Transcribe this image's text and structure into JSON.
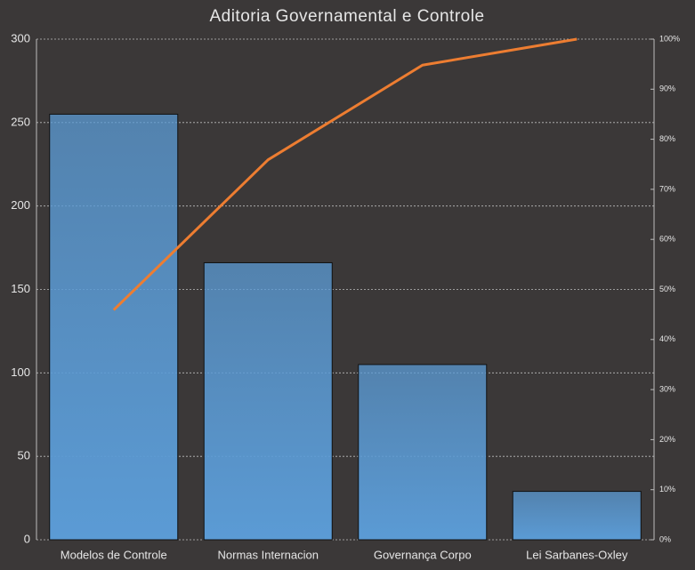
{
  "chart_data": {
    "type": "pareto",
    "title": "Aditoria Governamental e Controle",
    "categories": [
      "Modelos de Controle",
      "Normas Internacion",
      "Governança Corpo",
      "Lei Sarbanes-Oxley"
    ],
    "values": [
      255,
      166,
      105,
      29
    ],
    "color": "#5b9bd5",
    "line": {
      "values": [
        45.9,
        75.9,
        94.8,
        100
      ],
      "color": "#ed7d31",
      "axis": "y2"
    },
    "ylim": [
      0,
      300
    ],
    "yticks": [
      0,
      50,
      100,
      150,
      200,
      250,
      300
    ],
    "y2lim": [
      0,
      100
    ],
    "y2ticks": [
      {
        "value": 0,
        "label": "0%"
      },
      {
        "value": 10,
        "label": "10%"
      },
      {
        "value": 20,
        "label": "20%"
      },
      {
        "value": 30,
        "label": "30%"
      },
      {
        "value": 40,
        "label": "40%"
      },
      {
        "value": 50,
        "label": "50%"
      },
      {
        "value": 60,
        "label": "60%"
      },
      {
        "value": 70,
        "label": "70%"
      },
      {
        "value": 80,
        "label": "80%"
      },
      {
        "value": 90,
        "label": "90%"
      },
      {
        "value": 100,
        "label": "100%"
      }
    ],
    "grid": true
  }
}
